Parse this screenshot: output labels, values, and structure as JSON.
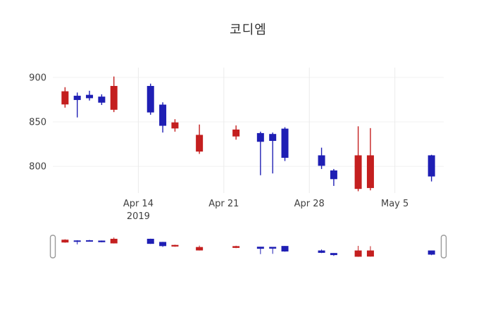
{
  "chart_data": {
    "type": "candlestick",
    "title": "코디엠",
    "up_color": "#c41f1f",
    "down_color": "#1f1fb4",
    "grid": true,
    "legend": "none",
    "x_range": [
      "2019-04-07",
      "2019-05-09"
    ],
    "y_range": [
      770,
      911
    ],
    "y_tick_labels": [
      {
        "label": "900",
        "value": 900
      },
      {
        "label": "850",
        "value": 850
      },
      {
        "label": "800",
        "value": 800
      }
    ],
    "x_tick_labels": [
      {
        "line1": "Apr 14",
        "line2": "2019",
        "date": "2019-04-14"
      },
      {
        "line1": "Apr 21",
        "date": "2019-04-21"
      },
      {
        "line1": "Apr 28",
        "date": "2019-04-28"
      },
      {
        "line1": "May 5",
        "date": "2019-05-05"
      }
    ],
    "candles": [
      {
        "date": "2019-04-08",
        "open": 870,
        "high": 889,
        "low": 866,
        "close": 884
      },
      {
        "date": "2019-04-09",
        "open": 879,
        "high": 883,
        "low": 855,
        "close": 875
      },
      {
        "date": "2019-04-10",
        "open": 880,
        "high": 885,
        "low": 874,
        "close": 877
      },
      {
        "date": "2019-04-11",
        "open": 878,
        "high": 881,
        "low": 869,
        "close": 872
      },
      {
        "date": "2019-04-12",
        "open": 864,
        "high": 901,
        "low": 861,
        "close": 890
      },
      {
        "date": "2019-04-15",
        "open": 890,
        "high": 893,
        "low": 858,
        "close": 861
      },
      {
        "date": "2019-04-16",
        "open": 869,
        "high": 872,
        "low": 838,
        "close": 846
      },
      {
        "date": "2019-04-17",
        "open": 843,
        "high": 853,
        "low": 839,
        "close": 849
      },
      {
        "date": "2019-04-19",
        "open": 817,
        "high": 847,
        "low": 814,
        "close": 835
      },
      {
        "date": "2019-04-22",
        "open": 834,
        "high": 846,
        "low": 830,
        "close": 841
      },
      {
        "date": "2019-04-24",
        "open": 837,
        "high": 839,
        "low": 790,
        "close": 828
      },
      {
        "date": "2019-04-25",
        "open": 836,
        "high": 838,
        "low": 792,
        "close": 829
      },
      {
        "date": "2019-04-26",
        "open": 842,
        "high": 844,
        "low": 806,
        "close": 810
      },
      {
        "date": "2019-04-29",
        "open": 812,
        "high": 821,
        "low": 797,
        "close": 801
      },
      {
        "date": "2019-04-30",
        "open": 795,
        "high": 797,
        "low": 778,
        "close": 786
      },
      {
        "date": "2019-05-02",
        "open": 775,
        "high": 845,
        "low": 772,
        "close": 812
      },
      {
        "date": "2019-05-03",
        "open": 776,
        "high": 843,
        "low": 773,
        "close": 812
      },
      {
        "date": "2019-05-08",
        "open": 812,
        "high": 813,
        "low": 783,
        "close": 789
      }
    ],
    "range_slider": {
      "visible": true,
      "position": "bottom"
    }
  }
}
